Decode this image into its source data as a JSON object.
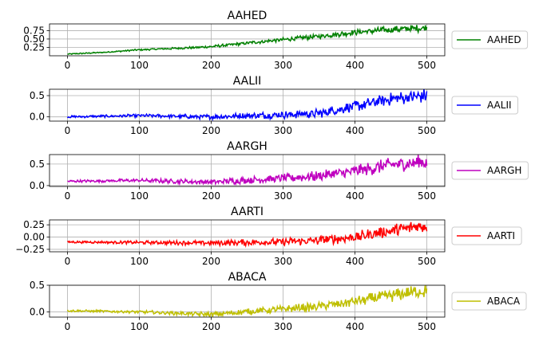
{
  "chart_data": [
    {
      "type": "line",
      "title": "AAHED",
      "color": "#008000",
      "grid": true,
      "legend_location": "right",
      "series": [
        {
          "name": "AAHED",
          "x_range": [
            0,
            500
          ],
          "anchors": [
            [
              0,
              0.05
            ],
            [
              50,
              0.1
            ],
            [
              100,
              0.18
            ],
            [
              150,
              0.22
            ],
            [
              200,
              0.27
            ],
            [
              250,
              0.38
            ],
            [
              300,
              0.48
            ],
            [
              350,
              0.58
            ],
            [
              400,
              0.7
            ],
            [
              450,
              0.78
            ],
            [
              500,
              0.83
            ]
          ],
          "noise": 0.12
        }
      ],
      "xlim": [
        -25,
        525
      ],
      "ylim": [
        0,
        0.95
      ],
      "xticks": [
        0,
        100,
        200,
        300,
        400,
        500
      ],
      "yticks": [
        0.25,
        0.5,
        0.75
      ],
      "yticklabels": [
        "0.25",
        "0.50",
        "0.75"
      ]
    },
    {
      "type": "line",
      "title": "AALII",
      "color": "#0000ff",
      "grid": true,
      "legend_location": "right",
      "series": [
        {
          "name": "AALII",
          "x_range": [
            0,
            500
          ],
          "anchors": [
            [
              0,
              0.0
            ],
            [
              100,
              0.03
            ],
            [
              200,
              0.0
            ],
            [
              300,
              0.05
            ],
            [
              350,
              0.08
            ],
            [
              400,
              0.25
            ],
            [
              450,
              0.42
            ],
            [
              500,
              0.5
            ]
          ],
          "noise": 0.18
        }
      ],
      "xlim": [
        -25,
        525
      ],
      "ylim": [
        -0.1,
        0.65
      ],
      "xticks": [
        0,
        100,
        200,
        300,
        400,
        500
      ],
      "yticks": [
        0.0,
        0.5
      ],
      "yticklabels": [
        "0.0",
        "0.5"
      ]
    },
    {
      "type": "line",
      "title": "AARGH",
      "color": "#bf00bf",
      "grid": true,
      "legend_location": "right",
      "series": [
        {
          "name": "AARGH",
          "x_range": [
            0,
            500
          ],
          "anchors": [
            [
              0,
              0.1
            ],
            [
              100,
              0.12
            ],
            [
              200,
              0.08
            ],
            [
              300,
              0.17
            ],
            [
              350,
              0.22
            ],
            [
              400,
              0.33
            ],
            [
              450,
              0.48
            ],
            [
              500,
              0.55
            ]
          ],
          "noise": 0.2
        }
      ],
      "xlim": [
        -25,
        525
      ],
      "ylim": [
        -0.02,
        0.72
      ],
      "xticks": [
        0,
        100,
        200,
        300,
        400,
        500
      ],
      "yticks": [
        0.0,
        0.5
      ],
      "yticklabels": [
        "0.0",
        "0.5"
      ]
    },
    {
      "type": "line",
      "title": "AARTI",
      "color": "#ff0000",
      "grid": true,
      "legend_location": "right",
      "series": [
        {
          "name": "AARTI",
          "x_range": [
            0,
            500
          ],
          "anchors": [
            [
              0,
              -0.1
            ],
            [
              100,
              -0.11
            ],
            [
              200,
              -0.12
            ],
            [
              300,
              -0.1
            ],
            [
              350,
              -0.07
            ],
            [
              400,
              0.0
            ],
            [
              450,
              0.12
            ],
            [
              500,
              0.25
            ]
          ],
          "noise": 0.16
        }
      ],
      "xlim": [
        -25,
        525
      ],
      "ylim": [
        -0.3,
        0.35
      ],
      "xticks": [
        0,
        100,
        200,
        300,
        400,
        500
      ],
      "yticks": [
        -0.25,
        0.0,
        0.25
      ],
      "yticklabels": [
        "−0.25",
        "0.00",
        "0.25"
      ]
    },
    {
      "type": "line",
      "title": "ABACA",
      "color": "#bfbf00",
      "grid": true,
      "legend_location": "right",
      "series": [
        {
          "name": "ABACA",
          "x_range": [
            0,
            500
          ],
          "anchors": [
            [
              0,
              0.02
            ],
            [
              100,
              0.0
            ],
            [
              200,
              -0.05
            ],
            [
              300,
              0.05
            ],
            [
              350,
              0.1
            ],
            [
              400,
              0.2
            ],
            [
              450,
              0.3
            ],
            [
              500,
              0.4
            ]
          ],
          "noise": 0.14
        }
      ],
      "xlim": [
        -25,
        525
      ],
      "ylim": [
        -0.1,
        0.5
      ],
      "xticks": [
        0,
        100,
        200,
        300,
        400,
        500
      ],
      "yticks": [
        0.0,
        0.5
      ],
      "yticklabels": [
        "0.0",
        "0.5"
      ]
    }
  ]
}
